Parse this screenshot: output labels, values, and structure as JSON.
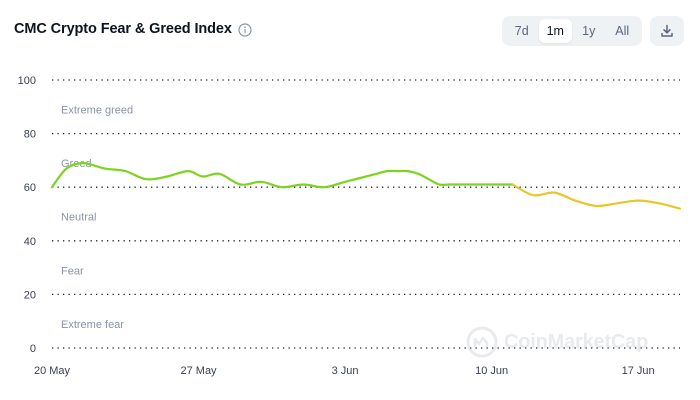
{
  "header": {
    "title": "CMC Crypto Fear & Greed Index",
    "info_icon": "info-icon",
    "ranges": [
      "7d",
      "1m",
      "1y",
      "All"
    ],
    "active_range": "1m",
    "download_icon": "download-icon"
  },
  "watermark": {
    "text": "CoinMarketCap",
    "icon": "coinmarketcap-logo"
  },
  "colors": {
    "green": "#7ed321",
    "yellow": "#e6c72c",
    "grid": "#1e2430",
    "label": "#8a94a6"
  },
  "chart_data": {
    "type": "line",
    "ylim": [
      0,
      100
    ],
    "yticks": [
      0,
      20,
      40,
      60,
      80,
      100
    ],
    "xlim": [
      0,
      30
    ],
    "xticks": [
      {
        "day": 0,
        "label": "20 May"
      },
      {
        "day": 7,
        "label": "27 May"
      },
      {
        "day": 14,
        "label": "3 Jun"
      },
      {
        "day": 21,
        "label": "10 Jun"
      },
      {
        "day": 28,
        "label": "17 Jun"
      }
    ],
    "zones": [
      {
        "label": "Extreme greed",
        "value": 89
      },
      {
        "label": "Greed",
        "value": 69
      },
      {
        "label": "Neutral",
        "value": 49
      },
      {
        "label": "Fear",
        "value": 29
      },
      {
        "label": "Extreme fear",
        "value": 9
      }
    ],
    "series": [
      {
        "color_key": "green",
        "x": [
          0,
          0.7,
          1.5,
          2.5,
          3.5,
          4.5,
          5.5,
          6.5,
          7.2,
          8,
          9,
          10,
          11,
          12,
          13,
          14,
          15,
          15.5,
          16,
          16.5,
          17,
          17.5,
          18,
          18.5,
          19,
          20,
          21,
          22
        ],
        "y": [
          60,
          67,
          69,
          67,
          66,
          63,
          64,
          66,
          64,
          65,
          61,
          62,
          60,
          61,
          60,
          62,
          64,
          65,
          66,
          66,
          66,
          65,
          63,
          61,
          61,
          61,
          61,
          61
        ]
      },
      {
        "color_key": "yellow",
        "x": [
          22,
          23,
          24,
          25,
          26,
          27,
          28,
          29,
          30
        ],
        "y": [
          61,
          57,
          58,
          55,
          53,
          54,
          55,
          54,
          52
        ]
      }
    ]
  }
}
